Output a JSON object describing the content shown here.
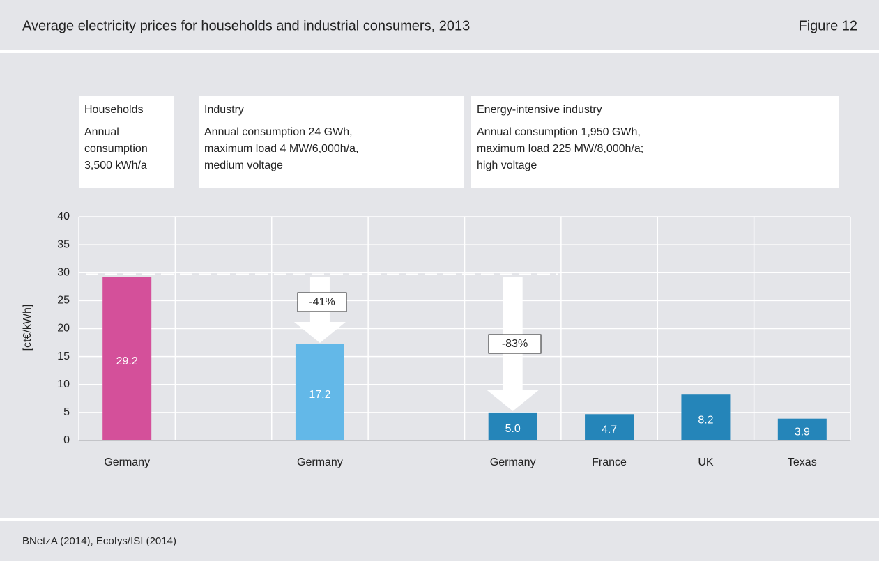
{
  "header": {
    "title": "Average electricity prices for households and industrial consumers, 2013",
    "figure": "Figure 12"
  },
  "footer": {
    "source": "BNetzA (2014), Ecofys/ISI (2014)"
  },
  "groups": [
    {
      "title": "Households",
      "lines": [
        "Annual",
        "consumption",
        "3,500 kWh/a"
      ]
    },
    {
      "title": "Industry",
      "lines": [
        "Annual consumption 24 GWh,",
        "maximum load 4 MW/6,000h/a,",
        "medium voltage"
      ]
    },
    {
      "title": "Energy-intensive industry",
      "lines": [
        "Annual consumption 1,950 GWh,",
        "maximum load 225 MW/8,000h/a;",
        "high voltage"
      ]
    }
  ],
  "chart_data": {
    "type": "bar",
    "y_label": "[ct€/kWh]",
    "categories": [
      "Germany",
      null,
      "Germany",
      null,
      "Germany",
      "France",
      "UK",
      "Texas"
    ],
    "values": [
      29.2,
      null,
      17.2,
      null,
      5.0,
      4.7,
      8.2,
      3.9
    ],
    "value_labels": [
      "29.2",
      null,
      "17.2",
      null,
      "5.0",
      "4.7",
      "8.2",
      "3.9"
    ],
    "colors": [
      "#d4509a",
      null,
      "#63b8e8",
      null,
      "#2585b9",
      "#2585b9",
      "#2585b9",
      "#2585b9"
    ],
    "annotations": [
      "-41%",
      "-83%"
    ],
    "ylim": [
      0,
      40
    ],
    "yticks": [
      0,
      5,
      10,
      15,
      20,
      25,
      30,
      35,
      40
    ],
    "grid": true
  }
}
